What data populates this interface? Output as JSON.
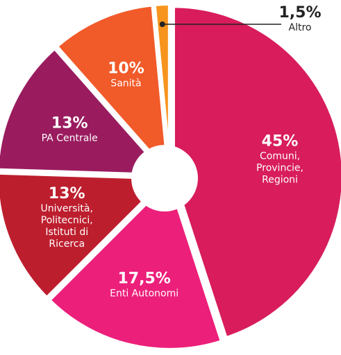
{
  "chart_data": {
    "type": "donut",
    "categories": [
      "Comuni,\nProvincie,\nRegioni",
      "Enti Autonomi",
      "Università,\nPolitecnici,\nIstituti di\nRicerca",
      "PA Centrale",
      "Sanità",
      "Altro"
    ],
    "values": [
      45,
      17.5,
      13,
      13,
      10,
      1.5
    ],
    "value_labels": [
      "45%",
      "17,5%",
      "13%",
      "13%",
      "10%",
      "1,5%"
    ],
    "colors": [
      "#d81c5c",
      "#ec1f7a",
      "#bd1e2e",
      "#9a1c5f",
      "#f15a29",
      "#f7941d"
    ]
  }
}
